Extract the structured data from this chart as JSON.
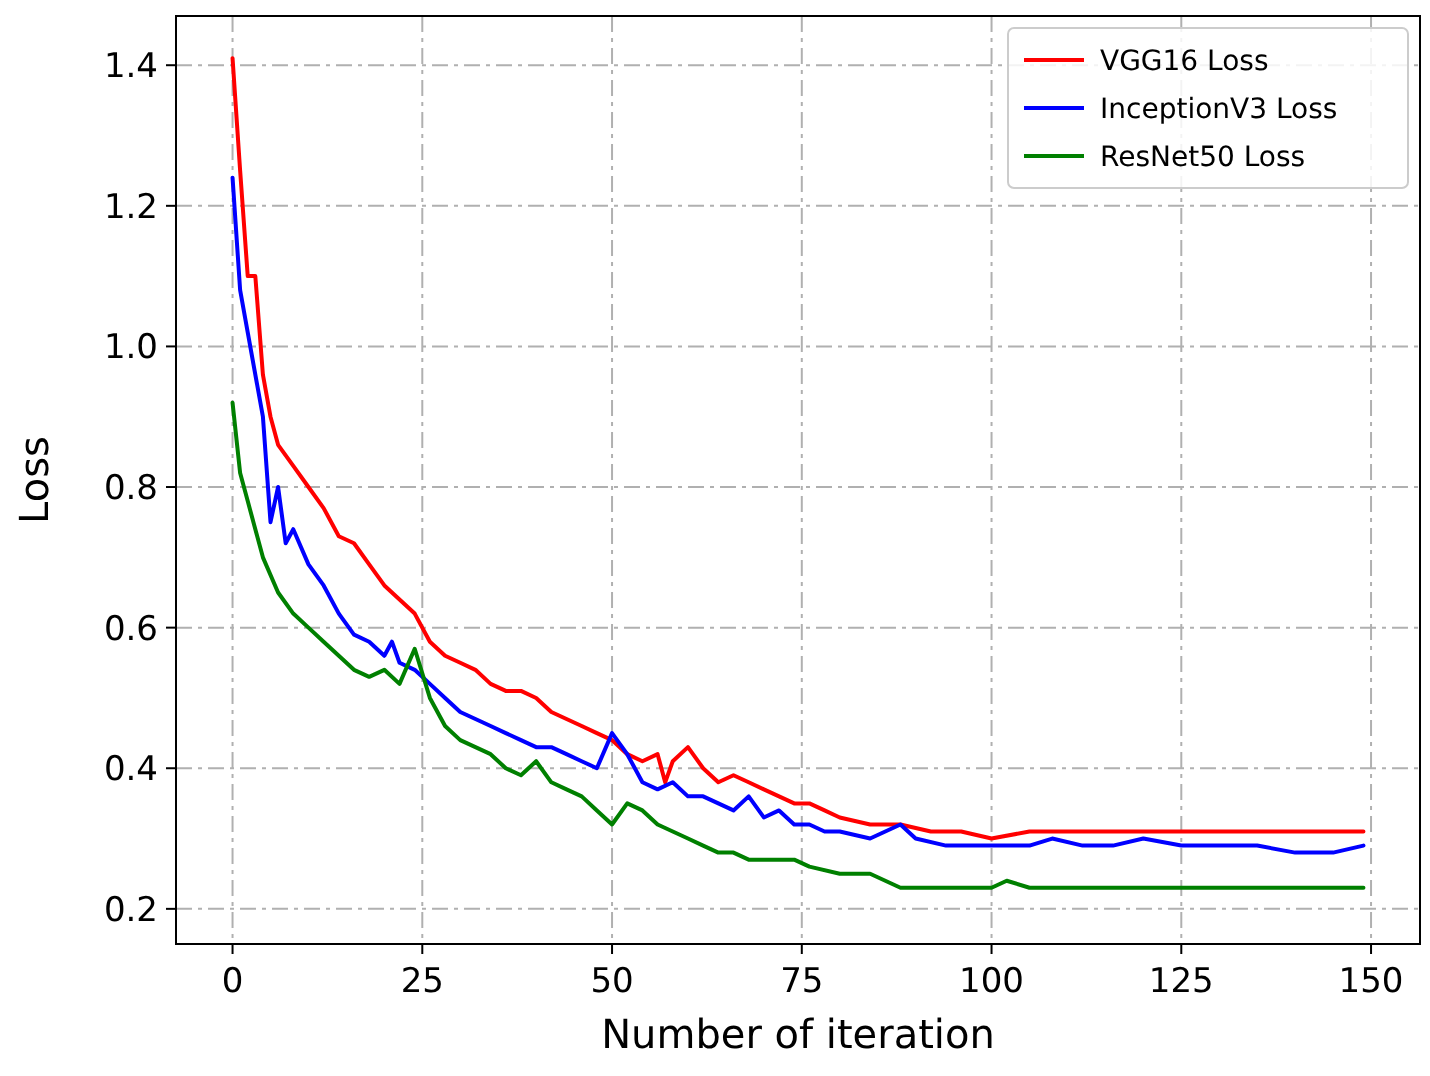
{
  "chart_data": {
    "type": "line",
    "xlabel": "Number of iteration",
    "ylabel": "Loss",
    "xlim": [
      -7.45,
      156.45
    ],
    "ylim": [
      0.15,
      1.47
    ],
    "xticks": [
      0,
      25,
      50,
      75,
      100,
      125,
      150
    ],
    "yticks": [
      {
        "value": 0.2,
        "label": "0.2"
      },
      {
        "value": 0.4,
        "label": "0.4"
      },
      {
        "value": 0.6,
        "label": "0.6"
      },
      {
        "value": 0.8,
        "label": "0.8"
      },
      {
        "value": 1.0,
        "label": "1.0"
      },
      {
        "value": 1.2,
        "label": "1.2"
      },
      {
        "value": 1.4,
        "label": "1.4"
      }
    ],
    "grid": true,
    "legend": "top right",
    "line_style": "solid",
    "series": [
      {
        "name": "VGG16 Loss",
        "color": "#ff0000",
        "x": [
          0,
          1,
          2,
          3,
          4,
          5,
          6,
          8,
          10,
          12,
          14,
          16,
          18,
          20,
          22,
          24,
          26,
          28,
          30,
          32,
          34,
          36,
          38,
          40,
          42,
          44,
          46,
          48,
          50,
          52,
          54,
          56,
          57,
          58,
          60,
          62,
          64,
          66,
          68,
          70,
          72,
          74,
          76,
          78,
          80,
          84,
          88,
          92,
          96,
          100,
          105,
          110,
          115,
          120,
          125,
          130,
          135,
          140,
          145,
          149
        ],
        "values": [
          1.41,
          1.25,
          1.1,
          1.1,
          0.96,
          0.9,
          0.86,
          0.83,
          0.8,
          0.77,
          0.73,
          0.72,
          0.69,
          0.66,
          0.64,
          0.62,
          0.58,
          0.56,
          0.55,
          0.54,
          0.52,
          0.51,
          0.51,
          0.5,
          0.48,
          0.47,
          0.46,
          0.45,
          0.44,
          0.42,
          0.41,
          0.42,
          0.38,
          0.41,
          0.43,
          0.4,
          0.38,
          0.39,
          0.38,
          0.37,
          0.36,
          0.35,
          0.35,
          0.34,
          0.33,
          0.32,
          0.32,
          0.31,
          0.31,
          0.3,
          0.31,
          0.31,
          0.31,
          0.31,
          0.31,
          0.31,
          0.31,
          0.31,
          0.31,
          0.31
        ]
      },
      {
        "name": "InceptionV3 Loss",
        "color": "#0000ff",
        "x": [
          0,
          1,
          2,
          4,
          5,
          6,
          7,
          8,
          10,
          12,
          14,
          16,
          18,
          20,
          21,
          22,
          24,
          26,
          28,
          30,
          32,
          34,
          36,
          38,
          40,
          42,
          44,
          46,
          48,
          50,
          52,
          54,
          56,
          58,
          60,
          62,
          64,
          66,
          68,
          70,
          72,
          74,
          76,
          78,
          80,
          84,
          88,
          90,
          94,
          100,
          105,
          108,
          112,
          116,
          120,
          125,
          130,
          135,
          140,
          145,
          149
        ],
        "values": [
          1.24,
          1.08,
          1.02,
          0.9,
          0.75,
          0.8,
          0.72,
          0.74,
          0.69,
          0.66,
          0.62,
          0.59,
          0.58,
          0.56,
          0.58,
          0.55,
          0.54,
          0.52,
          0.5,
          0.48,
          0.47,
          0.46,
          0.45,
          0.44,
          0.43,
          0.43,
          0.42,
          0.41,
          0.4,
          0.45,
          0.42,
          0.38,
          0.37,
          0.38,
          0.36,
          0.36,
          0.35,
          0.34,
          0.36,
          0.33,
          0.34,
          0.32,
          0.32,
          0.31,
          0.31,
          0.3,
          0.32,
          0.3,
          0.29,
          0.29,
          0.29,
          0.3,
          0.29,
          0.29,
          0.3,
          0.29,
          0.29,
          0.29,
          0.28,
          0.28,
          0.29
        ]
      },
      {
        "name": "ResNet50 Loss",
        "color": "#008000",
        "x": [
          0,
          1,
          2,
          4,
          6,
          8,
          10,
          12,
          14,
          16,
          18,
          20,
          22,
          24,
          26,
          28,
          30,
          32,
          34,
          36,
          38,
          40,
          42,
          44,
          46,
          48,
          50,
          52,
          54,
          56,
          58,
          60,
          62,
          64,
          66,
          68,
          70,
          74,
          76,
          80,
          84,
          88,
          92,
          96,
          100,
          102,
          105,
          110,
          115,
          120,
          125,
          130,
          135,
          140,
          145,
          149
        ],
        "values": [
          0.92,
          0.82,
          0.78,
          0.7,
          0.65,
          0.62,
          0.6,
          0.58,
          0.56,
          0.54,
          0.53,
          0.54,
          0.52,
          0.57,
          0.5,
          0.46,
          0.44,
          0.43,
          0.42,
          0.4,
          0.39,
          0.41,
          0.38,
          0.37,
          0.36,
          0.34,
          0.32,
          0.35,
          0.34,
          0.32,
          0.31,
          0.3,
          0.29,
          0.28,
          0.28,
          0.27,
          0.27,
          0.27,
          0.26,
          0.25,
          0.25,
          0.23,
          0.23,
          0.23,
          0.23,
          0.24,
          0.23,
          0.23,
          0.23,
          0.23,
          0.23,
          0.23,
          0.23,
          0.23,
          0.23,
          0.23
        ]
      }
    ]
  }
}
